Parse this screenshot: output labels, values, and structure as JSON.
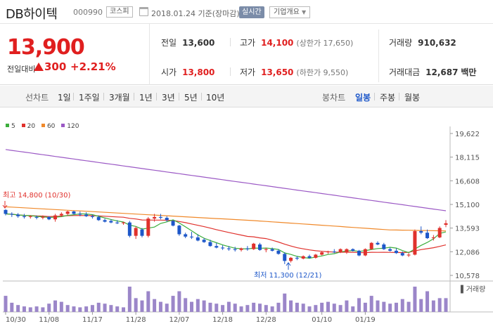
{
  "header": {
    "name": "DB하이텍",
    "code": "000990",
    "market": "코스피",
    "date_text": "2018.01.24 기준(장마감)",
    "realtime_label": "실시간",
    "company_info_label": "기업개요"
  },
  "price": {
    "current": "13,900",
    "change_label": "전일대비",
    "change": "300",
    "change_pct": "+2.21%"
  },
  "stats": {
    "prev_close_label": "전일",
    "prev_close": "13,600",
    "high_label": "고가",
    "high": "14,100",
    "upper_limit": "(상한가 17,650)",
    "volume_label": "거래량",
    "volume": "910,632",
    "open_label": "시가",
    "open": "13,800",
    "low_label": "저가",
    "low": "13,650",
    "lower_limit": "(하한가 9,550)",
    "amount_label": "거래대금",
    "amount": "12,687",
    "amount_unit": "백만"
  },
  "period_bar": {
    "line_label": "선차트",
    "line_options": [
      "1일",
      "1주일",
      "3개월",
      "1년",
      "3년",
      "5년",
      "10년"
    ],
    "candle_label": "봉차트",
    "candle_options": [
      "일봉",
      "주봉",
      "월봉"
    ],
    "candle_selected": "일봉"
  },
  "legend": [
    {
      "label": "5",
      "color": "#3cae3c"
    },
    {
      "label": "20",
      "color": "#e0312c"
    },
    {
      "label": "60",
      "color": "#f0892a"
    },
    {
      "label": "120",
      "color": "#9b59c5"
    }
  ],
  "volume_label": "거래량",
  "chart_data": {
    "type": "candlestick",
    "y_ticks": [
      "19,622",
      "18,115",
      "16,608",
      "15,100",
      "13,593",
      "12,086",
      "10,578"
    ],
    "ylim": [
      10578,
      19622
    ],
    "x_ticks": [
      "10/30",
      "11/08",
      "11/17",
      "11/28",
      "12/07",
      "12/18",
      "12/28",
      "01/10",
      "01/19"
    ],
    "annotations": {
      "high": "최고 14,800 (10/30)",
      "low": "최저 11,300 (12/21)"
    },
    "candles": [
      {
        "o": 14750,
        "h": 14800,
        "l": 14400,
        "c": 14500
      },
      {
        "o": 14500,
        "h": 14600,
        "l": 14300,
        "c": 14450
      },
      {
        "o": 14450,
        "h": 14550,
        "l": 14250,
        "c": 14350
      },
      {
        "o": 14350,
        "h": 14500,
        "l": 14200,
        "c": 14300
      },
      {
        "o": 14300,
        "h": 14400,
        "l": 14200,
        "c": 14350
      },
      {
        "o": 14300,
        "h": 14400,
        "l": 14150,
        "c": 14250
      },
      {
        "o": 14250,
        "h": 14400,
        "l": 14150,
        "c": 14300
      },
      {
        "o": 14300,
        "h": 14350,
        "l": 14100,
        "c": 14150
      },
      {
        "o": 14150,
        "h": 14500,
        "l": 14000,
        "c": 14400
      },
      {
        "o": 14400,
        "h": 14600,
        "l": 14300,
        "c": 14500
      },
      {
        "o": 14500,
        "h": 14700,
        "l": 14400,
        "c": 14650
      },
      {
        "o": 14650,
        "h": 14700,
        "l": 14450,
        "c": 14500
      },
      {
        "o": 14500,
        "h": 14650,
        "l": 14350,
        "c": 14450
      },
      {
        "o": 14450,
        "h": 14600,
        "l": 14300,
        "c": 14350
      },
      {
        "o": 14350,
        "h": 14450,
        "l": 14200,
        "c": 14300
      },
      {
        "o": 14300,
        "h": 14400,
        "l": 14050,
        "c": 14100
      },
      {
        "o": 14100,
        "h": 14200,
        "l": 13950,
        "c": 14000
      },
      {
        "o": 14050,
        "h": 14150,
        "l": 13900,
        "c": 13950
      },
      {
        "o": 13950,
        "h": 14100,
        "l": 13850,
        "c": 13900
      },
      {
        "o": 13900,
        "h": 14000,
        "l": 13800,
        "c": 13950
      },
      {
        "o": 13950,
        "h": 14050,
        "l": 13000,
        "c": 13100
      },
      {
        "o": 13100,
        "h": 13700,
        "l": 12900,
        "c": 13600
      },
      {
        "o": 13500,
        "h": 13600,
        "l": 13000,
        "c": 13100
      },
      {
        "o": 13100,
        "h": 14300,
        "l": 13000,
        "c": 14200
      },
      {
        "o": 14200,
        "h": 14500,
        "l": 14000,
        "c": 14300
      },
      {
        "o": 14300,
        "h": 14500,
        "l": 14150,
        "c": 14250
      },
      {
        "o": 14250,
        "h": 14350,
        "l": 14000,
        "c": 14100
      },
      {
        "o": 14050,
        "h": 14100,
        "l": 13700,
        "c": 13750
      },
      {
        "o": 13750,
        "h": 13800,
        "l": 13100,
        "c": 13200
      },
      {
        "o": 13200,
        "h": 13300,
        "l": 12950,
        "c": 13050
      },
      {
        "o": 13050,
        "h": 13350,
        "l": 12900,
        "c": 13000
      },
      {
        "o": 13000,
        "h": 13200,
        "l": 12750,
        "c": 12800
      },
      {
        "o": 12850,
        "h": 12950,
        "l": 12650,
        "c": 12700
      },
      {
        "o": 12700,
        "h": 12850,
        "l": 12400,
        "c": 12450
      },
      {
        "o": 12450,
        "h": 12650,
        "l": 12300,
        "c": 12350
      },
      {
        "o": 12350,
        "h": 12500,
        "l": 12200,
        "c": 12300
      },
      {
        "o": 12300,
        "h": 12450,
        "l": 12150,
        "c": 12250
      },
      {
        "o": 12250,
        "h": 12400,
        "l": 12100,
        "c": 12200
      },
      {
        "o": 12200,
        "h": 12350,
        "l": 12100,
        "c": 12300
      },
      {
        "o": 12300,
        "h": 12450,
        "l": 12150,
        "c": 12250
      },
      {
        "o": 12250,
        "h": 12650,
        "l": 12200,
        "c": 12600
      },
      {
        "o": 12550,
        "h": 12650,
        "l": 12150,
        "c": 12200
      },
      {
        "o": 12200,
        "h": 12350,
        "l": 12050,
        "c": 12250
      },
      {
        "o": 12250,
        "h": 12350,
        "l": 12100,
        "c": 12150
      },
      {
        "o": 12150,
        "h": 12250,
        "l": 11900,
        "c": 11950
      },
      {
        "o": 11950,
        "h": 12050,
        "l": 11300,
        "c": 11500
      },
      {
        "o": 11500,
        "h": 11750,
        "l": 11400,
        "c": 11700
      },
      {
        "o": 11700,
        "h": 11800,
        "l": 11550,
        "c": 11650
      },
      {
        "o": 11650,
        "h": 11850,
        "l": 11600,
        "c": 11800
      },
      {
        "o": 11800,
        "h": 11900,
        "l": 11650,
        "c": 11700
      },
      {
        "o": 11700,
        "h": 11950,
        "l": 11650,
        "c": 11900
      },
      {
        "o": 11900,
        "h": 12100,
        "l": 11850,
        "c": 12050
      },
      {
        "o": 12050,
        "h": 12150,
        "l": 11950,
        "c": 12100
      },
      {
        "o": 12100,
        "h": 12250,
        "l": 12000,
        "c": 12050
      },
      {
        "o": 12050,
        "h": 12300,
        "l": 12000,
        "c": 12250
      },
      {
        "o": 12050,
        "h": 12300,
        "l": 11950,
        "c": 12250
      },
      {
        "o": 12250,
        "h": 12300,
        "l": 12100,
        "c": 12150
      },
      {
        "o": 12150,
        "h": 12200,
        "l": 11800,
        "c": 11850
      },
      {
        "o": 11850,
        "h": 12300,
        "l": 11800,
        "c": 12250
      },
      {
        "o": 12250,
        "h": 12700,
        "l": 12200,
        "c": 12650
      },
      {
        "o": 12650,
        "h": 12750,
        "l": 12500,
        "c": 12550
      },
      {
        "o": 12550,
        "h": 12650,
        "l": 12200,
        "c": 12250
      },
      {
        "o": 12250,
        "h": 12350,
        "l": 12100,
        "c": 12150
      },
      {
        "o": 12150,
        "h": 12300,
        "l": 11950,
        "c": 12000
      },
      {
        "o": 12000,
        "h": 12100,
        "l": 11800,
        "c": 11850
      },
      {
        "o": 11850,
        "h": 12000,
        "l": 11750,
        "c": 11900
      },
      {
        "o": 11900,
        "h": 13500,
        "l": 11850,
        "c": 13400
      },
      {
        "o": 13400,
        "h": 13700,
        "l": 13200,
        "c": 13300
      },
      {
        "o": 13300,
        "h": 13500,
        "l": 12900,
        "c": 12950
      },
      {
        "o": 12950,
        "h": 13150,
        "l": 12800,
        "c": 13000
      },
      {
        "o": 13000,
        "h": 13700,
        "l": 12950,
        "c": 13600
      },
      {
        "o": 13800,
        "h": 14100,
        "l": 13650,
        "c": 13900
      }
    ],
    "volume": [
      35,
      20,
      15,
      12,
      10,
      12,
      10,
      18,
      25,
      22,
      15,
      12,
      10,
      12,
      15,
      20,
      18,
      15,
      12,
      10,
      55,
      30,
      25,
      45,
      28,
      22,
      18,
      35,
      45,
      30,
      22,
      28,
      25,
      20,
      18,
      15,
      22,
      18,
      12,
      15,
      20,
      18,
      15,
      12,
      20,
      40,
      25,
      20,
      18,
      12,
      15,
      20,
      22,
      18,
      15,
      25,
      12,
      30,
      20,
      35,
      25,
      22,
      18,
      20,
      28,
      22,
      55,
      28,
      45,
      25,
      30,
      30
    ]
  }
}
